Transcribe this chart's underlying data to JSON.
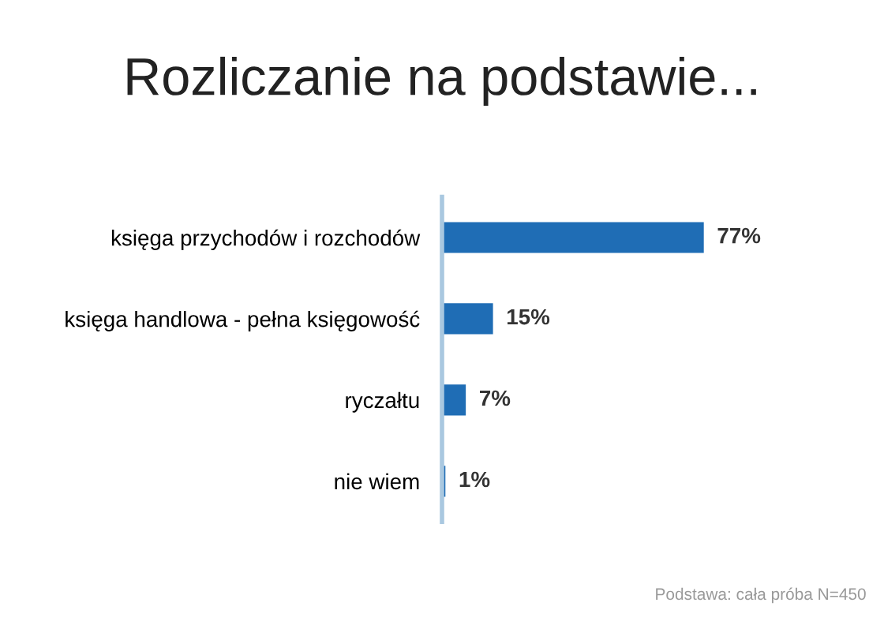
{
  "chart_data": {
    "type": "bar",
    "orientation": "horizontal",
    "title": "Rozliczanie na podstawie...",
    "categories": [
      "księga przychodów i rozchodów",
      "księga handlowa - pełna księgowość",
      "ryczałtu",
      "nie wiem"
    ],
    "values": [
      77,
      15,
      7,
      1
    ],
    "color": "#1f6db5",
    "value_labels": [
      "77%",
      "15%",
      "7%",
      "1%"
    ],
    "tick_labels": "y",
    "grid": false,
    "legend": false,
    "annotations": [
      "Podstawa: cała próba N=450"
    ]
  }
}
